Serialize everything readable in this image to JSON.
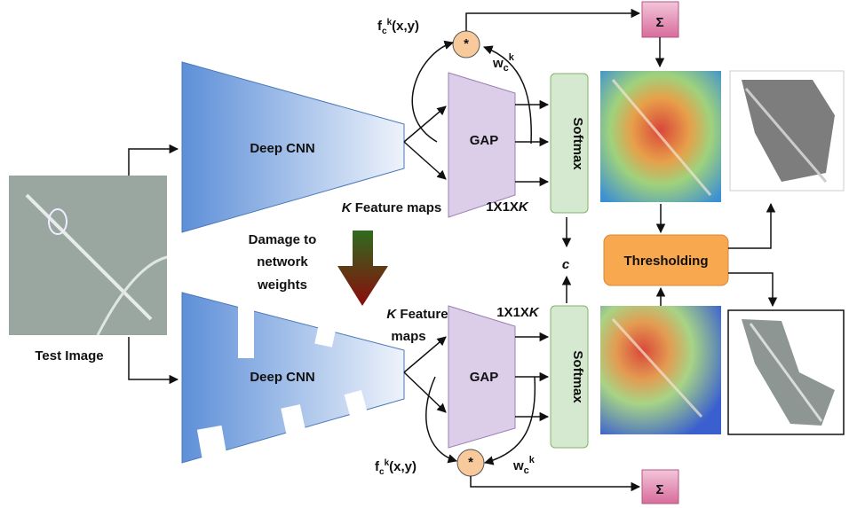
{
  "input": {
    "label": "Test Image"
  },
  "damage_label": [
    "Damage to",
    "network",
    "weights"
  ],
  "branches": [
    {
      "cnn": "Deep CNN",
      "feature_maps": {
        "k": "K",
        "lines": [
          "Feature maps"
        ]
      },
      "gap": "GAP",
      "vector": {
        "text": "1X1X",
        "k": "K"
      },
      "softmax": "Softmax",
      "feature_fn": {
        "base": "f",
        "sub": "c",
        "sup": "k",
        "rest": "(x,y)"
      },
      "multiply": "*",
      "weight": {
        "base": "w",
        "sub": "c",
        "sup": "k"
      },
      "sum": "Σ"
    },
    {
      "cnn": "Deep CNN",
      "feature_maps": {
        "k": "K",
        "lines": [
          "Feature",
          "maps"
        ]
      },
      "gap": "GAP",
      "vector": {
        "text": "1X1X",
        "k": "K"
      },
      "softmax": "Softmax",
      "feature_fn": {
        "base": "f",
        "sub": "c",
        "sup": "k",
        "rest": "(x,y)"
      },
      "multiply": "*",
      "weight": {
        "base": "w",
        "sub": "c",
        "sup": "k"
      },
      "sum": "Σ"
    }
  ],
  "class_label": "c",
  "threshold": "Thresholding"
}
